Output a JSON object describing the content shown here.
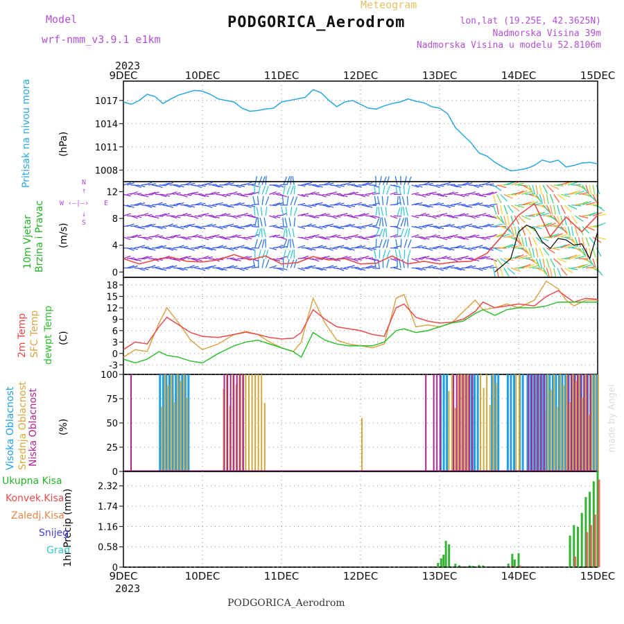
{
  "header": {
    "model_label": "Model",
    "model_name": "wrf-nmm_v3.9.1  e1km",
    "product": "Meteogram",
    "station_title": "PODGORICA_Aerodrom",
    "lonlat": "lon,lat (19.25E, 42.3625N)",
    "elevation": "Nadmorska Visina 39m",
    "model_elevation": "Nadmorska Visina u modelu 52.8106m"
  },
  "time_axis": {
    "year_top": "2023",
    "year_bottom": "2023",
    "labels": [
      "9DEC",
      "10DEC",
      "11DEC",
      "12DEC",
      "13DEC",
      "14DEC",
      "15DEC"
    ]
  },
  "footer": {
    "station": "PODGORICA_Aerodrom"
  },
  "credit": "made by Angel",
  "colors": {
    "pressure": "#2aa6e0",
    "temp2m": "#e84a4a",
    "sfctemp": "#d8a44a",
    "dewpt": "#2fbf2f",
    "high_cloud": "#1f9ee6",
    "mid_cloud": "#d4a83a",
    "low_cloud": "#b0228f",
    "total_precip": "#33b233",
    "conv_precip": "#e84a4a",
    "frz_precip": "#e8864a",
    "snow": "#4040e0",
    "grad": "#33c8c8",
    "wind_label": "#22b322",
    "compass": "#b14fd6"
  },
  "panels": {
    "pressure": {
      "labels": [
        "Pritisak na nivou mora",
        "(hPa)"
      ],
      "yticks": [
        "1008",
        "1011",
        "1014",
        "1017"
      ]
    },
    "wind": {
      "labels": [
        "10m Vjetar",
        "Brzina i Pravac",
        "(m/s)"
      ],
      "yticks": [
        "0",
        "4",
        "8",
        "12"
      ],
      "compass": {
        "n": "N",
        "s": "S",
        "w": "W",
        "e": "E"
      }
    },
    "temp": {
      "labels": [
        "2m Temp",
        "SFC Temp",
        "dewpt Temp",
        "(C)"
      ],
      "yticks": [
        "-3",
        "0",
        "3",
        "6",
        "9",
        "12",
        "15",
        "18"
      ]
    },
    "cloud": {
      "labels": [
        "Visoka Oblacnost",
        "Srednja Oblacnost",
        "Niska Oblacnost",
        "(%)"
      ],
      "yticks": [
        "0",
        "25",
        "50",
        "75",
        "100"
      ]
    },
    "precip": {
      "legend": [
        "Ukupna Kisa",
        "Konvek.Kisa",
        "Zaledj.Kisa",
        "Snijeg",
        "Grad"
      ],
      "ylabel": "1hr Precip (mm)",
      "yticks": [
        "0",
        "0.58",
        "1.16",
        "1.74",
        "2.32"
      ]
    }
  },
  "chart_data": [
    {
      "type": "line",
      "ylabel": "(hPa)",
      "ylim": [
        1006.5,
        1019.5
      ],
      "series": [
        {
          "name": "Pritisak na nivou mora",
          "x_days": [
            0,
            0.1,
            0.2,
            0.3,
            0.4,
            0.5,
            0.6,
            0.7,
            0.8,
            0.9,
            1.0,
            1.1,
            1.2,
            1.3,
            1.4,
            1.5,
            1.6,
            1.7,
            1.8,
            1.9,
            2.0,
            2.1,
            2.2,
            2.3,
            2.4,
            2.5,
            2.6,
            2.7,
            2.8,
            2.9,
            3.0,
            3.1,
            3.2,
            3.3,
            3.4,
            3.5,
            3.6,
            3.7,
            3.8,
            3.9,
            4.0,
            4.1,
            4.2,
            4.3,
            4.4,
            4.5,
            4.6,
            4.7,
            4.8,
            4.9,
            5.0,
            5.1,
            5.2,
            5.3,
            5.4,
            5.5,
            5.6,
            5.7,
            5.8,
            5.9,
            6.0
          ],
          "values": [
            1016.8,
            1016.5,
            1017.0,
            1017.8,
            1017.5,
            1016.6,
            1017.2,
            1017.7,
            1018.0,
            1018.3,
            1018.2,
            1017.8,
            1017.2,
            1017.0,
            1016.8,
            1016.0,
            1015.6,
            1015.7,
            1015.9,
            1016.0,
            1016.8,
            1017.0,
            1017.2,
            1017.4,
            1018.4,
            1018.0,
            1017.0,
            1016.2,
            1016.8,
            1017.0,
            1016.5,
            1016.0,
            1015.9,
            1016.3,
            1016.6,
            1016.8,
            1017.2,
            1016.9,
            1016.7,
            1016.2,
            1016.0,
            1015.3,
            1013.5,
            1012.5,
            1011.5,
            1010.2,
            1009.8,
            1009.0,
            1008.4,
            1007.9,
            1008.0,
            1008.2,
            1008.6,
            1009.3,
            1009.0,
            1009.3,
            1008.4,
            1008.6,
            1008.9,
            1009.0,
            1008.8
          ]
        }
      ]
    },
    {
      "type": "line",
      "ylabel": "(m/s)",
      "ylim": [
        -0.8,
        13.5
      ],
      "series": [
        {
          "name": "10m Vjetar Brzina",
          "x_days": [
            0,
            0.2,
            0.4,
            0.6,
            0.8,
            1.0,
            1.2,
            1.4,
            1.6,
            1.8,
            2.0,
            2.2,
            2.4,
            2.6,
            2.8,
            3.0,
            3.2,
            3.4,
            3.6,
            3.8,
            4.0,
            4.2,
            4.4,
            4.6,
            4.8,
            5.0,
            5.2,
            5.4,
            5.6,
            5.8,
            6.0
          ],
          "values": [
            2.0,
            1.2,
            1.8,
            2.2,
            1.6,
            1.5,
            1.8,
            2.6,
            1.8,
            2.4,
            1.2,
            1.4,
            2.3,
            1.8,
            2.0,
            1.2,
            1.3,
            2.4,
            1.2,
            1.6,
            1.2,
            1.5,
            1.6,
            2.8,
            5.5,
            8.5,
            10.2,
            5.3,
            8.2,
            6.0,
            8.5
          ]
        },
        {
          "name": "",
          "x_days": [
            4.7,
            4.9,
            5.0,
            5.1,
            5.2,
            5.3,
            5.4,
            5.5,
            5.6,
            5.7,
            5.8,
            5.9,
            6.0
          ],
          "values": [
            0.0,
            2.0,
            6.0,
            7.0,
            6.5,
            4.5,
            3.5,
            5.0,
            4.8,
            4.0,
            4.2,
            2.0,
            6.0
          ]
        }
      ]
    },
    {
      "type": "line",
      "ylabel": "(C)",
      "ylim": [
        -5.5,
        20
      ],
      "series": [
        {
          "name": "2m Temp",
          "x_days": [
            0,
            0.15,
            0.3,
            0.45,
            0.55,
            0.7,
            0.85,
            1.0,
            1.2,
            1.4,
            1.55,
            1.7,
            1.85,
            2.0,
            2.15,
            2.25,
            2.4,
            2.55,
            2.7,
            2.85,
            3.0,
            3.15,
            3.3,
            3.45,
            3.55,
            3.7,
            3.85,
            4.0,
            4.15,
            4.3,
            4.45,
            4.55,
            4.7,
            4.85,
            5.0,
            5.2,
            5.35,
            5.5,
            5.6,
            5.7,
            5.85,
            6.0
          ],
          "values": [
            1.0,
            3.0,
            2.5,
            7.0,
            9.5,
            7.5,
            5.5,
            4.5,
            4.2,
            5.0,
            5.6,
            5.0,
            4.2,
            3.8,
            4.0,
            5.5,
            11.5,
            9.0,
            7.0,
            6.5,
            6.0,
            5.0,
            4.5,
            12.0,
            13.0,
            9.5,
            8.5,
            8.0,
            8.2,
            9.0,
            11.0,
            13.5,
            12.0,
            12.5,
            13.0,
            12.5,
            15.0,
            16.5,
            15.0,
            13.5,
            14.5,
            14.2
          ]
        },
        {
          "name": "SFC Temp",
          "x_days": [
            0,
            0.15,
            0.3,
            0.45,
            0.55,
            0.7,
            0.85,
            1.0,
            1.2,
            1.4,
            1.55,
            1.7,
            1.85,
            2.0,
            2.15,
            2.25,
            2.4,
            2.55,
            2.7,
            2.85,
            3.0,
            3.15,
            3.3,
            3.45,
            3.55,
            3.7,
            3.85,
            4.0,
            4.15,
            4.3,
            4.45,
            4.55,
            4.7,
            4.85,
            5.0,
            5.2,
            5.35,
            5.5,
            5.6,
            5.7,
            5.85,
            6.0
          ],
          "values": [
            -1.0,
            1.0,
            0.5,
            8.0,
            12.0,
            8.0,
            3.5,
            1.0,
            2.5,
            5.0,
            5.8,
            5.0,
            3.0,
            1.5,
            0.5,
            3.0,
            14.5,
            8.0,
            3.5,
            2.5,
            2.0,
            1.5,
            2.5,
            14.5,
            15.5,
            7.0,
            7.5,
            7.0,
            8.0,
            11.0,
            14.0,
            11.5,
            12.0,
            13.0,
            12.0,
            14.0,
            19.0,
            17.0,
            14.0,
            12.5,
            14.0,
            14.0
          ]
        },
        {
          "name": "dewpt Temp",
          "x_days": [
            0,
            0.15,
            0.3,
            0.45,
            0.55,
            0.7,
            0.85,
            1.0,
            1.2,
            1.4,
            1.55,
            1.7,
            1.85,
            2.0,
            2.15,
            2.25,
            2.4,
            2.55,
            2.7,
            2.85,
            3.0,
            3.15,
            3.3,
            3.45,
            3.55,
            3.7,
            3.85,
            4.0,
            4.15,
            4.3,
            4.45,
            4.55,
            4.7,
            4.85,
            5.0,
            5.2,
            5.35,
            5.5,
            5.6,
            5.7,
            5.85,
            6.0
          ],
          "values": [
            -1.5,
            -2.5,
            -1.5,
            0.5,
            -0.5,
            -1.0,
            -2.0,
            -2.5,
            0.0,
            2.0,
            3.0,
            3.5,
            2.5,
            1.5,
            0.5,
            -1.0,
            5.5,
            3.5,
            2.5,
            2.0,
            2.0,
            2.0,
            3.0,
            6.0,
            6.5,
            5.5,
            6.0,
            7.0,
            8.0,
            8.5,
            10.5,
            11.5,
            10.0,
            11.5,
            12.0,
            12.0,
            12.5,
            13.5,
            13.5,
            13.5,
            13.5,
            13.5
          ]
        }
      ]
    },
    {
      "type": "bar",
      "ylabel": "(%)",
      "ylim": [
        0,
        100
      ],
      "series": [
        {
          "name": "Visoka Oblacnost",
          "ranges_days": [
            [
              0.45,
              0.85
            ],
            [
              4.0,
              4.1
            ],
            [
              4.35,
              4.5
            ],
            [
              4.65,
              4.75
            ],
            [
              4.85,
              4.95
            ],
            [
              5.0,
              5.05
            ],
            [
              5.1,
              6.0
            ]
          ],
          "value": 100
        },
        {
          "name": "Srednja Oblacnost",
          "ranges_days": [
            [
              0.47,
              0.82
            ],
            [
              1.25,
              1.8
            ],
            [
              3.0,
              3.01
            ],
            [
              4.1,
              4.35
            ],
            [
              4.5,
              4.7
            ],
            [
              4.95,
              5.0
            ],
            [
              5.15,
              6.0
            ]
          ],
          "value": 100
        },
        {
          "name": "Niska Oblacnost",
          "ranges_days": [
            [
              0.07,
              0.08
            ],
            [
              1.25,
              1.5
            ],
            [
              3.8,
              3.82
            ],
            [
              3.9,
              4.0
            ],
            [
              4.15,
              4.4
            ],
            [
              5.1,
              5.3
            ],
            [
              5.6,
              5.9
            ]
          ],
          "value": 100
        }
      ]
    },
    {
      "type": "bar",
      "ylabel": "1hr Precip (mm)",
      "ylim": [
        0,
        2.73
      ],
      "series": [
        {
          "name": "Ukupna Kisa",
          "x_days": [
            1.3,
            3.98,
            4.02,
            4.05,
            4.08,
            4.12,
            4.2,
            4.25,
            4.38,
            4.42,
            4.5,
            4.55,
            4.87,
            4.92,
            4.95,
            5.0,
            5.65,
            5.7,
            5.75,
            5.8,
            5.85,
            5.9,
            5.95,
            6.0
          ],
          "values": [
            0.02,
            0.12,
            0.25,
            0.36,
            0.75,
            0.65,
            0.1,
            0.05,
            0.05,
            0.04,
            0.06,
            0.05,
            0.1,
            0.38,
            0.22,
            0.4,
            0.9,
            1.2,
            1.15,
            1.55,
            2.0,
            2.15,
            2.45,
            2.75
          ]
        },
        {
          "name": "Konvek.Kisa",
          "x_days": [
            4.9,
            5.0,
            5.7,
            5.85,
            5.9,
            5.95,
            6.0
          ],
          "values": [
            0.05,
            0.05,
            0.3,
            1.0,
            1.2,
            1.5,
            2.5
          ]
        }
      ]
    }
  ]
}
